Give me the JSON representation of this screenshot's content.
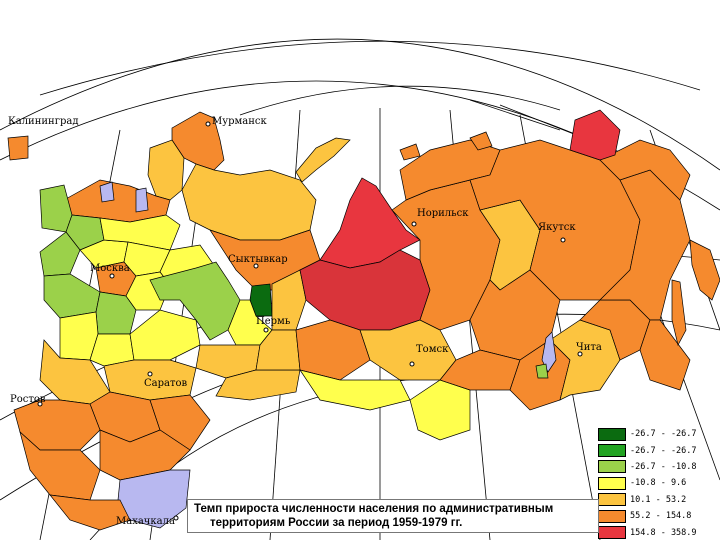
{
  "map": {
    "cities": [
      {
        "id": "kaliningrad",
        "name": "Калининград"
      },
      {
        "id": "murmansk",
        "name": "Мурманск"
      },
      {
        "id": "norilsk",
        "name": "Норильск"
      },
      {
        "id": "yakutsk",
        "name": "Якутск"
      },
      {
        "id": "moskva",
        "name": "Москва"
      },
      {
        "id": "syktyvkar",
        "name": "Сыктывкар"
      },
      {
        "id": "perm",
        "name": "Пермь"
      },
      {
        "id": "saratov",
        "name": "Саратов"
      },
      {
        "id": "rostov",
        "name": "Ростов"
      },
      {
        "id": "tomsk",
        "name": "Томск"
      },
      {
        "id": "chita",
        "name": "Чита"
      },
      {
        "id": "makhachkala",
        "name": "Махачкала"
      }
    ]
  },
  "legend": {
    "items": [
      {
        "label": "-26.7 - -26.7",
        "color": "#0b6b10"
      },
      {
        "label": "-26.7 - -26.7",
        "color": "#22a322"
      },
      {
        "label": "-26.7 - -10.8",
        "color": "#9bd14a"
      },
      {
        "label": "-10.8 -  9.6",
        "color": "#ffff4d"
      },
      {
        "label": "10.1 - 53.2",
        "color": "#fcc440"
      },
      {
        "label": "55.2 - 154.8",
        "color": "#f58a2e"
      },
      {
        "label": "154.8 - 358.9",
        "color": "#e8363f"
      }
    ]
  },
  "caption": {
    "line1": "Темп прироста численности населения по административным",
    "line2": "территориям России за период 1959-1979 гг."
  },
  "colors": {
    "dark_green": "#0b6b10",
    "green": "#22a322",
    "light_green": "#9bd14a",
    "yellow": "#ffff4d",
    "light_orange": "#fcc440",
    "orange": "#f58a2e",
    "red": "#e8363f",
    "water": "#b8b8f0"
  }
}
